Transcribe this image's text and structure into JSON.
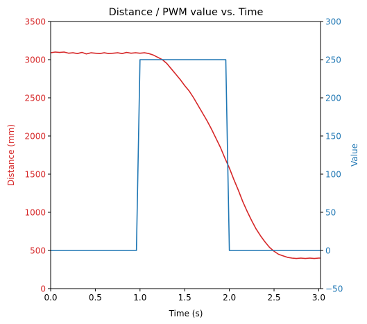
{
  "chart_data": {
    "type": "line",
    "title": "Distance / PWM value vs. Time",
    "xlabel": "Time (s)",
    "ylabel_left": "Distance (mm)",
    "ylabel_right": "Value",
    "xlim": [
      0,
      3.02
    ],
    "ylim_left": [
      0,
      3500
    ],
    "ylim_right": [
      -50,
      300
    ],
    "x_ticks": [
      0,
      0.5,
      1.0,
      1.5,
      2.0,
      2.5,
      3.0
    ],
    "x_tick_labels": [
      "0.0",
      "0.5",
      "1.0",
      "1.5",
      "2.0",
      "2.5",
      "3.0"
    ],
    "y_left_ticks": [
      0,
      500,
      1000,
      1500,
      2000,
      2500,
      3000,
      3500
    ],
    "y_left_tick_labels": [
      "0",
      "500",
      "1000",
      "1500",
      "2000",
      "2500",
      "3000",
      "3500"
    ],
    "y_right_ticks": [
      -50,
      0,
      50,
      100,
      150,
      200,
      250,
      300
    ],
    "y_right_tick_labels": [
      "−50",
      "0",
      "50",
      "100",
      "150",
      "200",
      "250",
      "300"
    ],
    "grid": false,
    "colors": {
      "left_axis": "#d62728",
      "right_axis": "#1f77b4"
    },
    "series": [
      {
        "axis": "left",
        "color": "#d62728",
        "x": [
          0,
          0.05,
          0.1,
          0.15,
          0.2,
          0.25,
          0.3,
          0.35,
          0.4,
          0.45,
          0.5,
          0.55,
          0.6,
          0.65,
          0.7,
          0.75,
          0.8,
          0.85,
          0.9,
          0.95,
          1.0,
          1.05,
          1.1,
          1.15,
          1.2,
          1.25,
          1.3,
          1.35,
          1.4,
          1.45,
          1.5,
          1.55,
          1.6,
          1.65,
          1.7,
          1.75,
          1.8,
          1.85,
          1.9,
          1.95,
          2.0,
          2.05,
          2.1,
          2.15,
          2.2,
          2.25,
          2.3,
          2.35,
          2.4,
          2.45,
          2.5,
          2.55,
          2.6,
          2.65,
          2.7,
          2.75,
          2.8,
          2.85,
          2.9,
          2.95,
          3.0,
          3.02
        ],
        "y": [
          3090,
          3100,
          3095,
          3100,
          3085,
          3090,
          3080,
          3095,
          3075,
          3090,
          3085,
          3080,
          3090,
          3080,
          3085,
          3090,
          3080,
          3095,
          3085,
          3090,
          3085,
          3090,
          3080,
          3060,
          3030,
          3000,
          2950,
          2880,
          2810,
          2740,
          2660,
          2590,
          2500,
          2400,
          2300,
          2200,
          2090,
          1970,
          1850,
          1710,
          1580,
          1430,
          1290,
          1140,
          1010,
          890,
          780,
          690,
          610,
          540,
          490,
          450,
          430,
          410,
          400,
          395,
          400,
          395,
          400,
          395,
          400,
          400
        ]
      },
      {
        "axis": "right",
        "color": "#1f77b4",
        "x": [
          0,
          0.96,
          1.0,
          1.96,
          2.0,
          3.02
        ],
        "y": [
          0,
          0,
          250,
          250,
          0,
          0
        ]
      }
    ]
  }
}
